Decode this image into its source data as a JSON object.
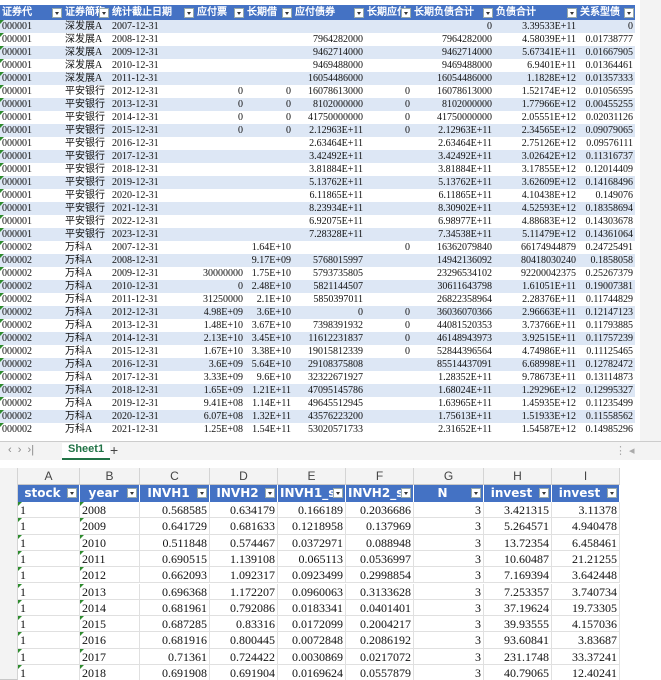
{
  "top_sheet": {
    "headers": [
      "证券代",
      "证券简称",
      "统计截止日期",
      "应付票",
      "长期借",
      "应付债券",
      "长期应付",
      "长期负债合计",
      "负债合计",
      "关系型债"
    ],
    "rows": [
      [
        "000001",
        "深发展A",
        "2007-12-31",
        null,
        null,
        null,
        null,
        "0",
        "3.39533E+11",
        "0"
      ],
      [
        "000001",
        "深发展A",
        "2008-12-31",
        null,
        null,
        "7964282000",
        null,
        "7964282000",
        "4.58039E+11",
        "0.01738777"
      ],
      [
        "000001",
        "深发展A",
        "2009-12-31",
        null,
        null,
        "9462714000",
        null,
        "9462714000",
        "5.67341E+11",
        "0.01667905"
      ],
      [
        "000001",
        "深发展A",
        "2010-12-31",
        null,
        null,
        "9469488000",
        null,
        "9469488000",
        "6.9401E+11",
        "0.01364461"
      ],
      [
        "000001",
        "深发展A",
        "2011-12-31",
        null,
        null,
        "16054486000",
        null,
        "16054486000",
        "1.1828E+12",
        "0.01357333"
      ],
      [
        "000001",
        "平安银行",
        "2012-12-31",
        "0",
        "0",
        "16078613000",
        "0",
        "16078613000",
        "1.52174E+12",
        "0.01056595"
      ],
      [
        "000001",
        "平安银行",
        "2013-12-31",
        "0",
        "0",
        "8102000000",
        "0",
        "8102000000",
        "1.77966E+12",
        "0.00455255"
      ],
      [
        "000001",
        "平安银行",
        "2014-12-31",
        "0",
        "0",
        "41750000000",
        "0",
        "41750000000",
        "2.05551E+12",
        "0.02031126"
      ],
      [
        "000001",
        "平安银行",
        "2015-12-31",
        "0",
        "0",
        "2.12963E+11",
        "0",
        "2.12963E+11",
        "2.34565E+12",
        "0.09079065"
      ],
      [
        "000001",
        "平安银行",
        "2016-12-31",
        null,
        null,
        "2.63464E+11",
        null,
        "2.63464E+11",
        "2.75126E+12",
        "0.09576111"
      ],
      [
        "000001",
        "平安银行",
        "2017-12-31",
        null,
        null,
        "3.42492E+11",
        null,
        "3.42492E+11",
        "3.02642E+12",
        "0.11316737"
      ],
      [
        "000001",
        "平安银行",
        "2018-12-31",
        null,
        null,
        "3.81884E+11",
        null,
        "3.81884E+11",
        "3.17855E+12",
        "0.12014409"
      ],
      [
        "000001",
        "平安银行",
        "2019-12-31",
        null,
        null,
        "5.13762E+11",
        null,
        "5.13762E+11",
        "3.62609E+12",
        "0.14168496"
      ],
      [
        "000001",
        "平安银行",
        "2020-12-31",
        null,
        null,
        "6.11865E+11",
        null,
        "6.11865E+11",
        "4.10438E+12",
        "0.149076"
      ],
      [
        "000001",
        "平安银行",
        "2021-12-31",
        null,
        null,
        "8.23934E+11",
        null,
        "8.30902E+11",
        "4.52593E+12",
        "0.18358694"
      ],
      [
        "000001",
        "平安银行",
        "2022-12-31",
        null,
        null,
        "6.92075E+11",
        null,
        "6.98977E+11",
        "4.88683E+12",
        "0.14303678"
      ],
      [
        "000001",
        "平安银行",
        "2023-12-31",
        null,
        null,
        "7.28328E+11",
        null,
        "7.34538E+11",
        "5.11479E+12",
        "0.14361064"
      ],
      [
        "000002",
        "万科A",
        "2007-12-31",
        null,
        "1.64E+10",
        null,
        "0",
        "16362079840",
        "66174944879",
        "0.24725491"
      ],
      [
        "000002",
        "万科A",
        "2008-12-31",
        null,
        "9.17E+09",
        "5768015997",
        null,
        "14942136092",
        "80418030240",
        "0.1858058"
      ],
      [
        "000002",
        "万科A",
        "2009-12-31",
        "30000000",
        "1.75E+10",
        "5793735805",
        null,
        "23296534102",
        "92200042375",
        "0.25267379"
      ],
      [
        "000002",
        "万科A",
        "2010-12-31",
        "0",
        "2.48E+10",
        "5821144507",
        null,
        "30611643798",
        "1.61051E+11",
        "0.19007381"
      ],
      [
        "000002",
        "万科A",
        "2011-12-31",
        "31250000",
        "2.1E+10",
        "5850397011",
        null,
        "26822358964",
        "2.28376E+11",
        "0.11744829"
      ],
      [
        "000002",
        "万科A",
        "2012-12-31",
        "4.98E+09",
        "3.6E+10",
        "0",
        "0",
        "36036070366",
        "2.96663E+11",
        "0.12147123"
      ],
      [
        "000002",
        "万科A",
        "2013-12-31",
        "1.48E+10",
        "3.67E+10",
        "7398391932",
        "0",
        "44081520353",
        "3.73766E+11",
        "0.11793885"
      ],
      [
        "000002",
        "万科A",
        "2014-12-31",
        "2.13E+10",
        "3.45E+10",
        "11612231837",
        "0",
        "46148943973",
        "3.92515E+11",
        "0.11757239"
      ],
      [
        "000002",
        "万科A",
        "2015-12-31",
        "1.67E+10",
        "3.38E+10",
        "19015812339",
        "0",
        "52844396564",
        "4.74986E+11",
        "0.11125465"
      ],
      [
        "000002",
        "万科A",
        "2016-12-31",
        "3.6E+09",
        "5.64E+10",
        "29108375808",
        null,
        "85514437091",
        "6.68998E+11",
        "0.12782472"
      ],
      [
        "000002",
        "万科A",
        "2017-12-31",
        "3.33E+09",
        "9.6E+10",
        "32322671927",
        null,
        "1.28352E+11",
        "9.78673E+11",
        "0.13114873"
      ],
      [
        "000002",
        "万科A",
        "2018-12-31",
        "1.65E+09",
        "1.21E+11",
        "47095145786",
        null,
        "1.68024E+11",
        "1.29296E+12",
        "0.12995327"
      ],
      [
        "000002",
        "万科A",
        "2019-12-31",
        "9.41E+08",
        "1.14E+11",
        "49645512945",
        null,
        "1.63965E+11",
        "1.45935E+12",
        "0.11235499"
      ],
      [
        "000002",
        "万科A",
        "2020-12-31",
        "6.07E+08",
        "1.32E+11",
        "43576223200",
        null,
        "1.75613E+11",
        "1.51933E+12",
        "0.11558562"
      ],
      [
        "000002",
        "万科A",
        "2021-12-31",
        "1.25E+08",
        "1.54E+11",
        "53020571733",
        null,
        "2.31652E+11",
        "1.54587E+12",
        "0.14985296"
      ]
    ]
  },
  "tab_bar": {
    "sheet_name": "Sheet1"
  },
  "bottom_sheet": {
    "column_letters": [
      "A",
      "B",
      "C",
      "D",
      "E",
      "F",
      "G",
      "H",
      "I"
    ],
    "headers": [
      "stock",
      "year",
      "INVH1",
      "INVH2",
      "INVH1_s",
      "INVH2_s",
      "N",
      "invest",
      "invest"
    ],
    "rows": [
      [
        "1",
        "2008",
        "0.568585",
        "0.634179",
        "0.166189",
        "0.2036686",
        "3",
        "3.421315",
        "3.11378"
      ],
      [
        "1",
        "2009",
        "0.641729",
        "0.681633",
        "0.1218958",
        "0.137969",
        "3",
        "5.264571",
        "4.940478"
      ],
      [
        "1",
        "2010",
        "0.511848",
        "0.574467",
        "0.0372971",
        "0.088948",
        "3",
        "13.72354",
        "6.458461"
      ],
      [
        "1",
        "2011",
        "0.690515",
        "1.139108",
        "0.065113",
        "0.0536997",
        "3",
        "10.60487",
        "21.21255"
      ],
      [
        "1",
        "2012",
        "0.662093",
        "1.092317",
        "0.0923499",
        "0.2998854",
        "3",
        "7.169394",
        "3.642448"
      ],
      [
        "1",
        "2013",
        "0.696368",
        "1.172207",
        "0.0960063",
        "0.3133628",
        "3",
        "7.253357",
        "3.740734"
      ],
      [
        "1",
        "2014",
        "0.681961",
        "0.792086",
        "0.0183341",
        "0.0401401",
        "3",
        "37.19624",
        "19.73305"
      ],
      [
        "1",
        "2015",
        "0.687285",
        "0.83316",
        "0.0172099",
        "0.2004217",
        "3",
        "39.93555",
        "4.157036"
      ],
      [
        "1",
        "2016",
        "0.681916",
        "0.800445",
        "0.0072848",
        "0.2086192",
        "3",
        "93.60841",
        "3.83687"
      ],
      [
        "1",
        "2017",
        "0.71361",
        "0.724422",
        "0.0030869",
        "0.0217072",
        "3",
        "231.1748",
        "33.37241"
      ],
      [
        "1",
        "2018",
        "0.691908",
        "0.691904",
        "0.0169624",
        "0.0557879",
        "3",
        "40.79065",
        "12.40241"
      ]
    ]
  }
}
